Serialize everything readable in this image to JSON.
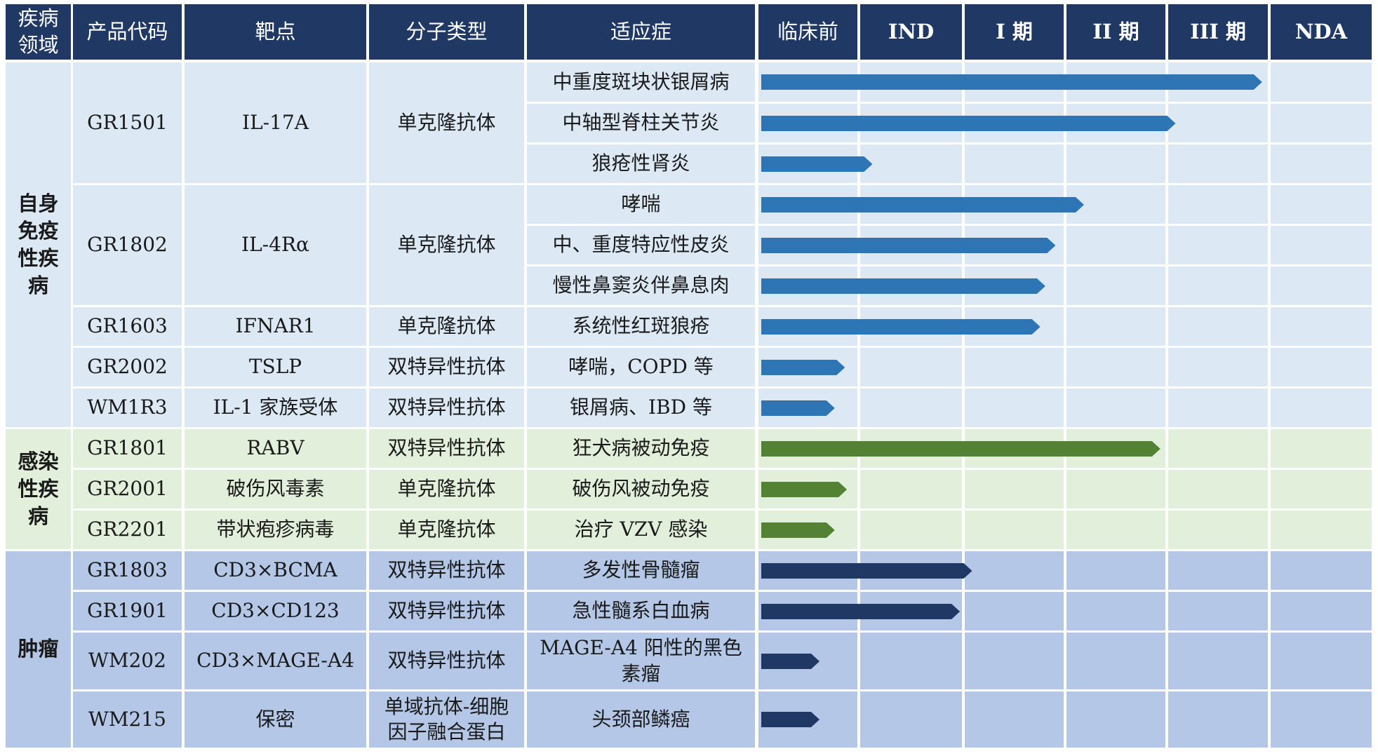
{
  "header": {
    "domain": "疾病\n领域",
    "code": "产品代码",
    "target": "靶点",
    "mol_type": "分子类型",
    "indication": "适应症",
    "phases": [
      "临床前",
      "IND",
      "I 期",
      "II 期",
      "III 期",
      "NDA"
    ]
  },
  "domains": [
    {
      "label": "自身\n免疫\n性疾\n病",
      "bg": "#dce9f5",
      "bar_color": "#2e75b6",
      "first_row": 0,
      "row_count": 9
    },
    {
      "label": "感染\n性疾\n病",
      "bg": "#e2efda",
      "bar_color": "#548235",
      "first_row": 9,
      "row_count": 3
    },
    {
      "label": "肿瘤",
      "bg": "#b4c7e7",
      "bar_color": "#1f3864",
      "first_row": 12,
      "row_count": 4
    }
  ],
  "products": [
    {
      "code": "GR1501",
      "target": "IL-17A",
      "mol_type": "单克隆抗体",
      "first_row": 0,
      "row_count": 3
    },
    {
      "code": "GR1802",
      "target": "IL-4Rα",
      "mol_type": "单克隆抗体",
      "first_row": 3,
      "row_count": 3
    },
    {
      "code": "GR1603",
      "target": "IFNAR1",
      "mol_type": "单克隆抗体",
      "first_row": 6,
      "row_count": 1
    },
    {
      "code": "GR2002",
      "target": "TSLP",
      "mol_type": "双特异性抗体",
      "first_row": 7,
      "row_count": 1
    },
    {
      "code": "WM1R3",
      "target": "IL-1 家族受体",
      "mol_type": "双特异性抗体",
      "first_row": 8,
      "row_count": 1
    },
    {
      "code": "GR1801",
      "target": "RABV",
      "mol_type": "双特异性抗体",
      "first_row": 9,
      "row_count": 1
    },
    {
      "code": "GR2001",
      "target": "破伤风毒素",
      "mol_type": "单克隆抗体",
      "first_row": 10,
      "row_count": 1
    },
    {
      "code": "GR2201",
      "target": "带状疱疹病毒",
      "mol_type": "单克隆抗体",
      "first_row": 11,
      "row_count": 1
    },
    {
      "code": "GR1803",
      "target": "CD3×BCMA",
      "mol_type": "双特异性抗体",
      "first_row": 12,
      "row_count": 1
    },
    {
      "code": "GR1901",
      "target": "CD3×CD123",
      "mol_type": "双特异性抗体",
      "first_row": 13,
      "row_count": 1
    },
    {
      "code": "WM202",
      "target": "CD3×MAGE-A4",
      "mol_type": "双特异性抗体",
      "first_row": 14,
      "row_count": 1
    },
    {
      "code": "WM215",
      "target": "保密",
      "mol_type": "单域抗体-细胞\n因子融合蛋白",
      "first_row": 15,
      "row_count": 1
    }
  ],
  "indications": [
    {
      "label": "中重度斑块状银屑病",
      "progress": 4.95
    },
    {
      "label": "中轴型脊柱关节炎",
      "progress": 4.1
    },
    {
      "label": "狼疮性肾炎",
      "progress": 1.12
    },
    {
      "label": "哮喘",
      "progress": 3.2
    },
    {
      "label": "中、重度特应性皮炎",
      "progress": 2.92
    },
    {
      "label": "慢性鼻窦炎伴鼻息肉",
      "progress": 2.82
    },
    {
      "label": "系统性红斑狼疮",
      "progress": 2.77
    },
    {
      "label": "哮喘，COPD 等",
      "progress": 0.85
    },
    {
      "label": "银屑病、IBD 等",
      "progress": 0.75
    },
    {
      "label": "狂犬病被动免疫",
      "progress": 3.95
    },
    {
      "label": "破伤风被动免疫",
      "progress": 0.87
    },
    {
      "label": "治疗 VZV 感染",
      "progress": 0.75
    },
    {
      "label": "多发性骨髓瘤",
      "progress": 2.1
    },
    {
      "label": "急性髓系白血病",
      "progress": 1.98
    },
    {
      "label": "MAGE-A4 阳性的黑色\n素瘤",
      "progress": 0.6
    },
    {
      "label": "头颈部鳞癌",
      "progress": 0.6
    }
  ]
}
